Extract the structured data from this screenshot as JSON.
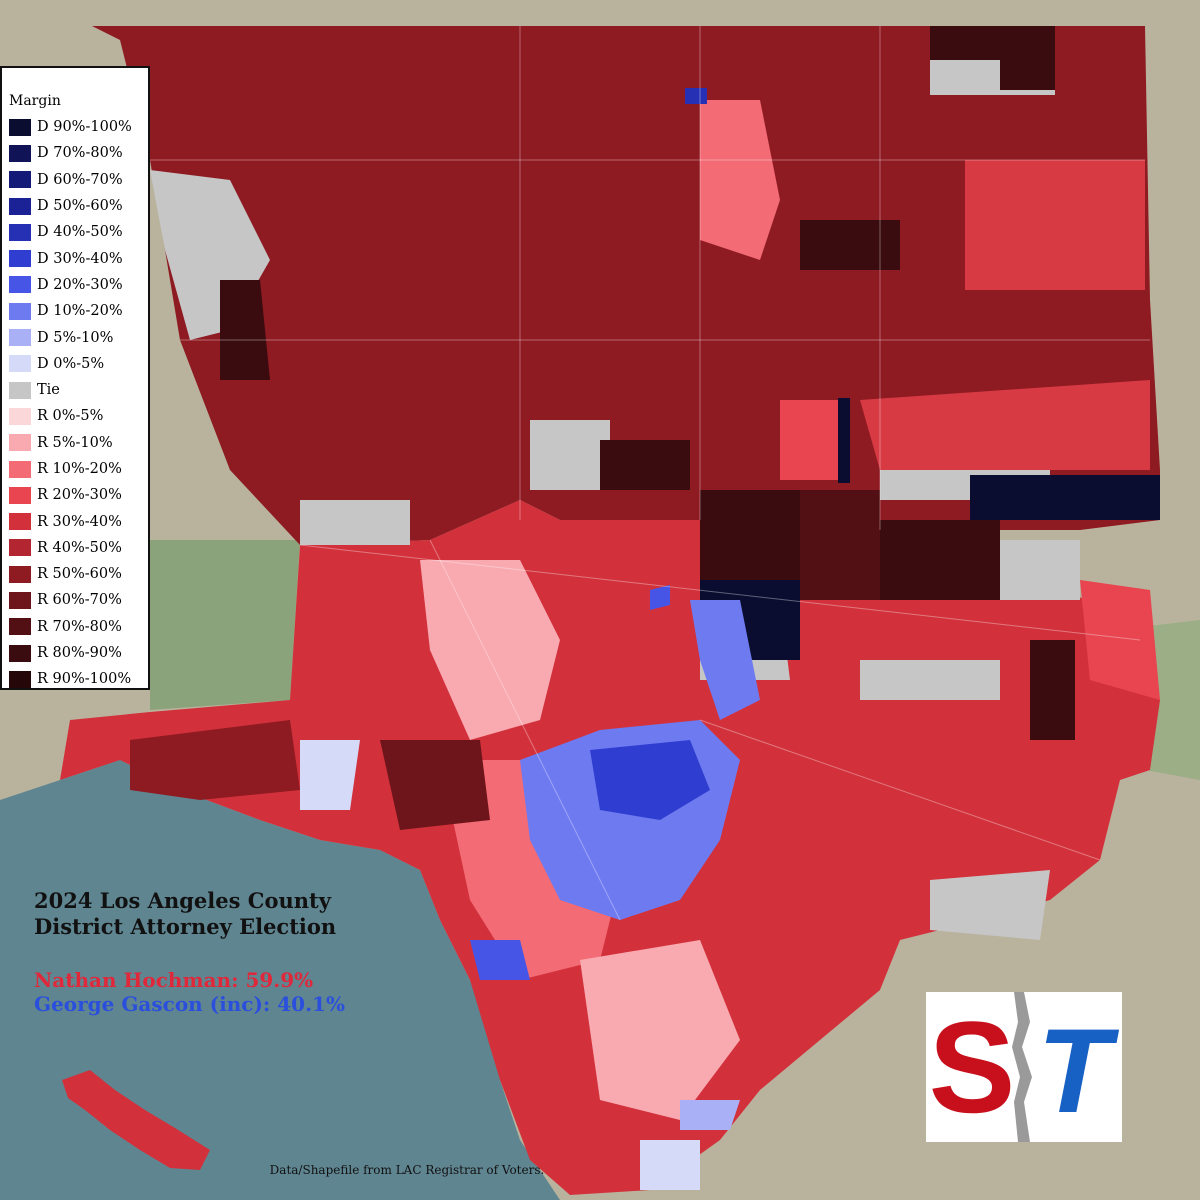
{
  "title": {
    "line1": "2024 Los Angeles County",
    "line2": "District Attorney Election"
  },
  "candidates": [
    {
      "label": "Nathan Hochman: 59.9%",
      "color": "#e0283b"
    },
    {
      "label": "George Gascon (inc): 40.1%",
      "color": "#2b4fdd"
    }
  ],
  "legend": {
    "title": "Margin",
    "items": [
      {
        "label": "D 90%-100%",
        "color": "#0a0d30"
      },
      {
        "label": "D 70%-80%",
        "color": "#101456"
      },
      {
        "label": "D 60%-70%",
        "color": "#141a78"
      },
      {
        "label": "D 50%-60%",
        "color": "#1a2296"
      },
      {
        "label": "D 40%-50%",
        "color": "#2530b4"
      },
      {
        "label": "D 30%-40%",
        "color": "#2f3dd0"
      },
      {
        "label": "D 20%-30%",
        "color": "#4655e6"
      },
      {
        "label": "D 10%-20%",
        "color": "#6e7af0"
      },
      {
        "label": "D 5%-10%",
        "color": "#a9b0f5"
      },
      {
        "label": "D 0%-5%",
        "color": "#d6daf9"
      },
      {
        "label": "Tie",
        "color": "#c6c6c6"
      },
      {
        "label": "R 0%-5%",
        "color": "#fcd7da"
      },
      {
        "label": "R 5%-10%",
        "color": "#f9aab1"
      },
      {
        "label": "R 10%-20%",
        "color": "#f36b75"
      },
      {
        "label": "R 20%-30%",
        "color": "#e84550"
      },
      {
        "label": "R 30%-40%",
        "color": "#d2313b"
      },
      {
        "label": "R 40%-50%",
        "color": "#b32530"
      },
      {
        "label": "R 50%-60%",
        "color": "#8e1a22"
      },
      {
        "label": "R 60%-70%",
        "color": "#6e151b"
      },
      {
        "label": "R 70%-80%",
        "color": "#521014"
      },
      {
        "label": "R 80%-90%",
        "color": "#3a0c0f"
      },
      {
        "label": "R 90%-100%",
        "color": "#260709"
      }
    ]
  },
  "source": "Data/Shapefile from LAC Registrar of Voters.",
  "logo": {
    "left_letter": "S",
    "right_letter": "T",
    "left_color": "#c8101d",
    "right_color": "#1760c4"
  },
  "ocean_color": "#5f8591"
}
